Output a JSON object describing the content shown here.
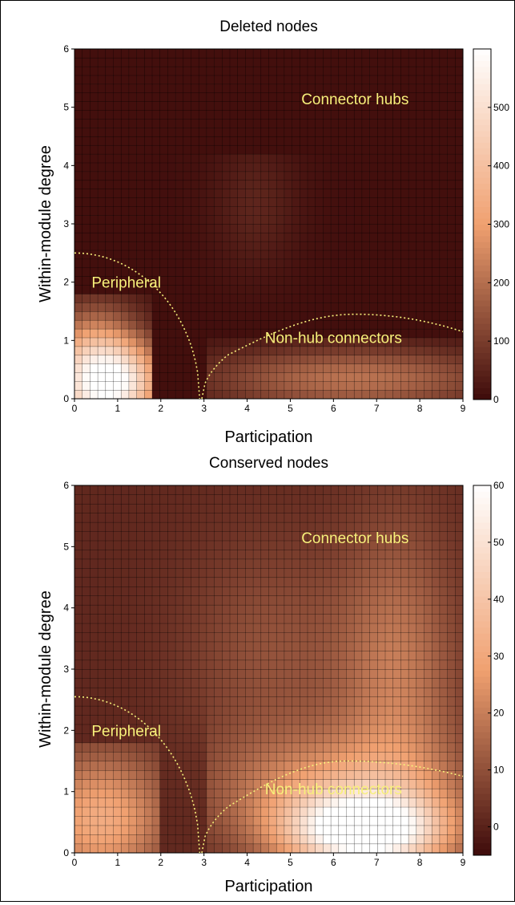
{
  "chart_data": [
    {
      "type": "heatmap",
      "title": "Deleted nodes",
      "xlabel": "Participation",
      "ylabel": "Within-module degree",
      "xlim": [
        0,
        9
      ],
      "ylim": [
        0,
        6
      ],
      "x_ticks": [
        "0",
        "1",
        "2",
        "3",
        "4",
        "5",
        "6",
        "7",
        "8",
        "9"
      ],
      "y_ticks": [
        "0",
        "1",
        "2",
        "3",
        "4",
        "5",
        "6"
      ],
      "colorbar": {
        "min": 0,
        "max": 600,
        "ticks": [
          "0",
          "100",
          "200",
          "300",
          "400",
          "500"
        ]
      },
      "grid": {
        "cols": 50,
        "rows": 40
      },
      "annotations": [
        {
          "text": "Connector hubs",
          "x": 6.5,
          "y": 5.15
        },
        {
          "text": "Peripheral",
          "x": 1.2,
          "y": 2.0
        },
        {
          "text": "Non-hub connectors",
          "x": 6.0,
          "y": 1.05
        }
      ],
      "density_blobs": [
        {
          "cx": 0.5,
          "cy": 0.35,
          "sx": 0.8,
          "sy": 0.7,
          "amp": 560,
          "ymax": 1.8,
          "xmax": 1.85
        },
        {
          "cx": 1.35,
          "cy": 0.3,
          "sx": 0.6,
          "sy": 0.4,
          "amp": 200,
          "ymax": 1.2,
          "xmax": 1.85
        },
        {
          "cx": 6.5,
          "cy": 0.35,
          "sx": 2.4,
          "sy": 0.38,
          "amp": 200,
          "xmin": 3.1,
          "ymax": 1.1
        },
        {
          "cx": 4.2,
          "cy": 3.3,
          "sx": 0.7,
          "sy": 0.8,
          "amp": 45,
          "ymax": 4.25
        }
      ],
      "background": 10,
      "curves": {
        "peripheral": {
          "y0": 2.5,
          "x_end": 2.9
        },
        "connector": {
          "x0": 2.95,
          "peak_x": 6.5,
          "peak_y": 1.45,
          "y_at_9": 1.15
        }
      }
    },
    {
      "type": "heatmap",
      "title": "Conserved nodes",
      "xlabel": "Participation",
      "ylabel": "Within-module degree",
      "xlim": [
        0,
        9
      ],
      "ylim": [
        0,
        6
      ],
      "x_ticks": [
        "0",
        "1",
        "2",
        "3",
        "4",
        "5",
        "6",
        "7",
        "8",
        "9"
      ],
      "y_ticks": [
        "0",
        "1",
        "2",
        "3",
        "4",
        "5",
        "6"
      ],
      "colorbar": {
        "min": -5,
        "max": 60,
        "ticks": [
          "0",
          "10",
          "20",
          "30",
          "40",
          "50",
          "60"
        ]
      },
      "grid": {
        "cols": 50,
        "rows": 40
      },
      "annotations": [
        {
          "text": "Connector hubs",
          "x": 6.5,
          "y": 5.15
        },
        {
          "text": "Peripheral",
          "x": 1.2,
          "y": 2.0
        },
        {
          "text": "Non-hub connectors",
          "x": 6.0,
          "y": 1.05
        }
      ],
      "density_blobs": [
        {
          "cx": 0.6,
          "cy": 0.55,
          "sx": 1.1,
          "sy": 0.75,
          "amp": 30,
          "ymax": 1.8,
          "xmax": 1.95
        },
        {
          "cx": 6.7,
          "cy": 0.35,
          "sx": 1.3,
          "sy": 0.45,
          "amp": 58,
          "xmin": 3.1
        },
        {
          "cx": 6.0,
          "cy": 1.0,
          "sx": 2.0,
          "sy": 0.7,
          "amp": 22,
          "xmin": 3.1
        },
        {
          "cx": 7.5,
          "cy": 2.8,
          "sx": 1.0,
          "sy": 1.8,
          "amp": 18
        },
        {
          "cx": 4.5,
          "cy": 3.3,
          "sx": 1.4,
          "sy": 1.3,
          "amp": 9
        }
      ],
      "background": 1.5,
      "curves": {
        "peripheral": {
          "y0": 2.55,
          "x_end": 2.9
        },
        "connector": {
          "x0": 2.95,
          "peak_x": 6.3,
          "peak_y": 1.5,
          "y_at_9": 1.25
        }
      }
    }
  ],
  "colors": {
    "low": "#3d0a0a",
    "mid": "#f0a070",
    "high": "#ffffff",
    "annotation": "#f7f07a",
    "curve": "#f7f07a"
  }
}
